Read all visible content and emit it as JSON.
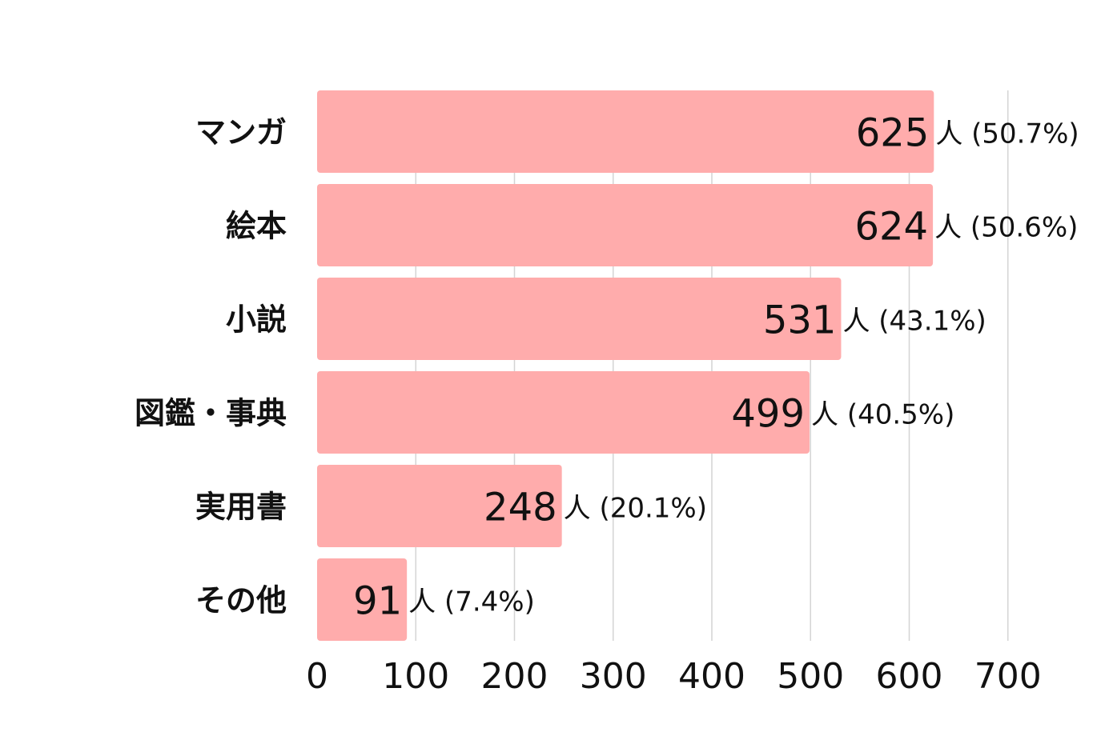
{
  "chart_data": {
    "type": "bar",
    "orientation": "horizontal",
    "categories": [
      "マンガ",
      "絵本",
      "小説",
      "図鑑・事典",
      "実用書",
      "その他"
    ],
    "values": [
      625,
      624,
      531,
      499,
      248,
      91
    ],
    "value_labels": [
      "625",
      "624",
      "531",
      "499",
      "248",
      "91"
    ],
    "value_suffixes": [
      "人 (50.7%)",
      "人 (50.6%)",
      "人 (43.1%)",
      "人 (40.5%)",
      "人 (20.1%)",
      "人 (7.4%)"
    ],
    "xticks": [
      0,
      100,
      200,
      300,
      400,
      500,
      600,
      700
    ],
    "xlim": [
      0,
      700
    ],
    "grid": "vertical",
    "bar_color": "#ffacac"
  }
}
